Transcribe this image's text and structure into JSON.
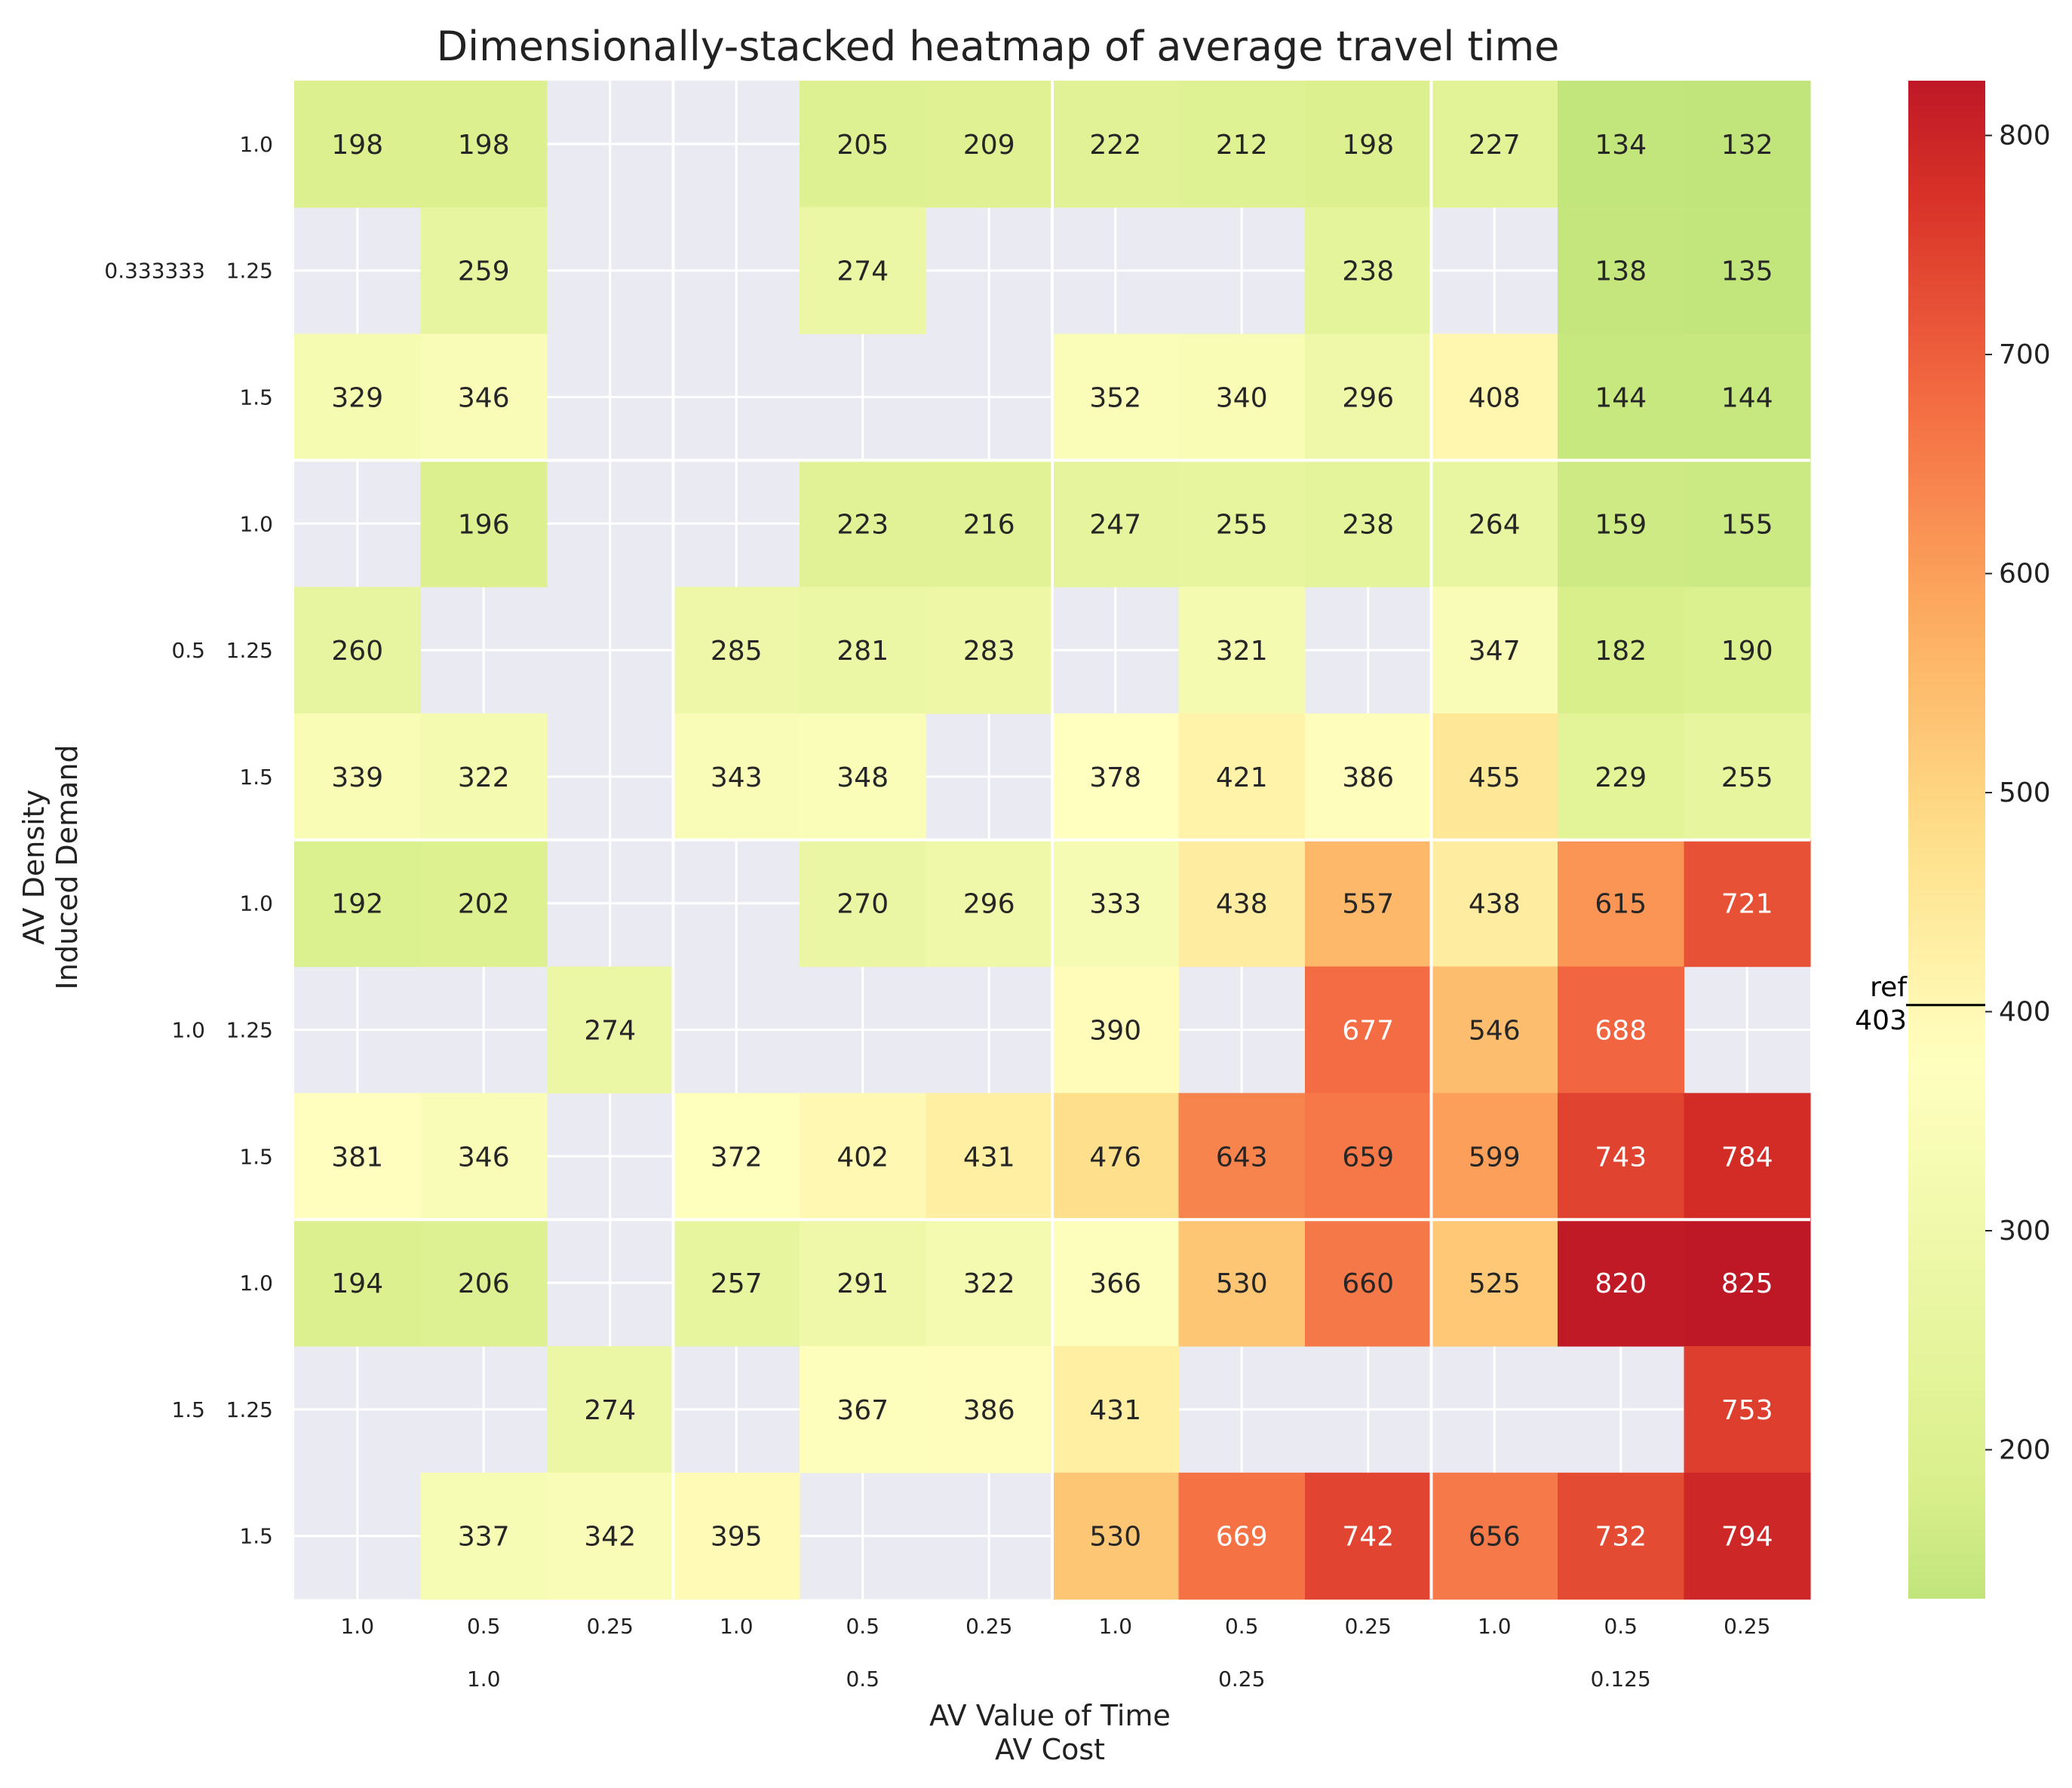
{
  "chart_data": {
    "type": "heatmap",
    "title": "Dimensionally-stacked heatmap of average travel time",
    "xlabel": [
      "AV Value of Time",
      "AV Cost"
    ],
    "ylabel": [
      "AV Density",
      "Induced Demand"
    ],
    "x_outer_levels": [
      "1.0",
      "0.5",
      "0.25",
      "0.125"
    ],
    "x_inner_levels_by_outer": [
      [
        "1.0",
        "0.5",
        "0.25"
      ],
      [
        "1.0",
        "0.5",
        "0.25"
      ],
      [
        "1.0",
        "0.5",
        "0.25"
      ],
      [
        "1.0",
        "0.5",
        "0.25"
      ]
    ],
    "y_outer_levels": [
      "0.333333",
      "0.5",
      "1.0",
      "1.5"
    ],
    "y_inner_levels_by_outer": [
      [
        "1.0",
        "1.25",
        "1.5"
      ],
      [
        "1.0",
        "1.25",
        "1.5"
      ],
      [
        "1.0",
        "1.25",
        "1.5"
      ],
      [
        "1.0",
        "1.25",
        "1.5"
      ]
    ],
    "values": [
      [
        198,
        198,
        null,
        null,
        205,
        209,
        222,
        212,
        198,
        227,
        134,
        132
      ],
      [
        null,
        259,
        null,
        null,
        274,
        null,
        null,
        null,
        238,
        null,
        138,
        135
      ],
      [
        329,
        346,
        null,
        null,
        null,
        null,
        352,
        340,
        296,
        408,
        144,
        144
      ],
      [
        null,
        196,
        null,
        null,
        223,
        216,
        247,
        255,
        238,
        264,
        159,
        155
      ],
      [
        260,
        null,
        null,
        285,
        281,
        283,
        null,
        321,
        null,
        347,
        182,
        190
      ],
      [
        339,
        322,
        null,
        343,
        348,
        null,
        378,
        421,
        386,
        455,
        229,
        255
      ],
      [
        192,
        202,
        null,
        null,
        270,
        296,
        333,
        438,
        557,
        438,
        615,
        721
      ],
      [
        null,
        null,
        274,
        null,
        null,
        null,
        390,
        null,
        677,
        546,
        688,
        null
      ],
      [
        381,
        346,
        null,
        372,
        402,
        431,
        476,
        643,
        659,
        599,
        743,
        784
      ],
      [
        194,
        206,
        null,
        257,
        291,
        322,
        366,
        530,
        660,
        525,
        820,
        825
      ],
      [
        null,
        null,
        274,
        null,
        367,
        386,
        431,
        null,
        null,
        null,
        null,
        753
      ],
      [
        null,
        337,
        342,
        395,
        null,
        null,
        530,
        669,
        742,
        656,
        732,
        794
      ]
    ],
    "colorscale": "RdYlGn_r",
    "colorbar": {
      "range": [
        132,
        825
      ],
      "ticks": [
        "200",
        "300",
        "400",
        "500",
        "600",
        "700",
        "800"
      ],
      "reference": {
        "label": "ref",
        "value": 403,
        "value_text": "403"
      }
    },
    "missing_color": "#eaeaf2",
    "grid": true
  }
}
